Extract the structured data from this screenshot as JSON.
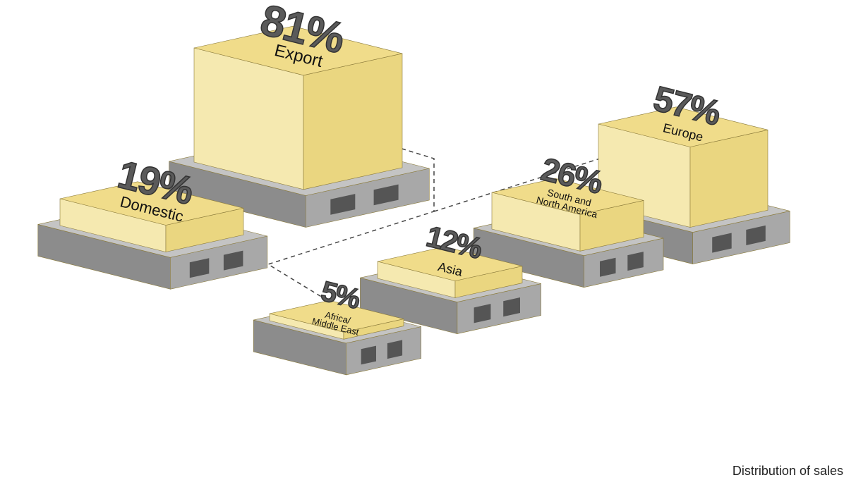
{
  "chart_data": {
    "type": "pallet",
    "caption": "Distribution of sales",
    "categories": [
      "Export",
      "Domestic",
      "Europe",
      "South and\nNorth America",
      "Asia",
      "Africa/\nMiddle East"
    ],
    "values": [
      81,
      19,
      57,
      26,
      12,
      5
    ],
    "value_labels": [
      "81%",
      "19%",
      "57%",
      "26%",
      "12%",
      "5%"
    ],
    "color": "#f0dc8a"
  }
}
